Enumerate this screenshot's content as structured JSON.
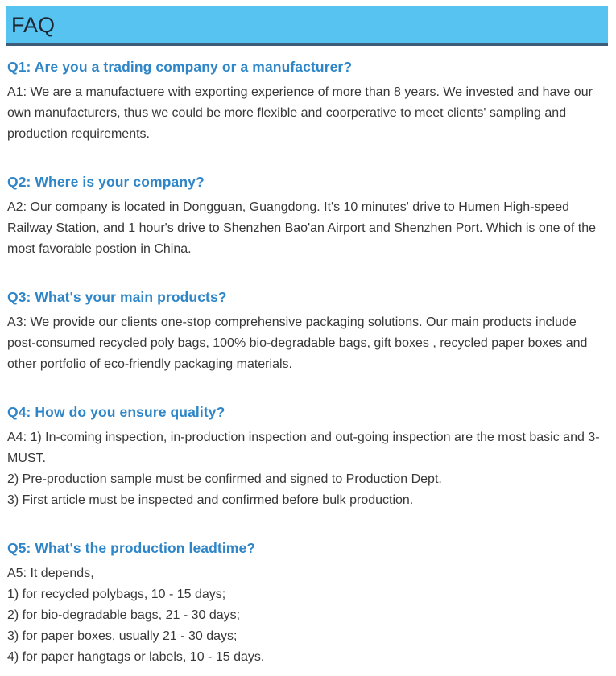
{
  "page": {
    "title": "FAQ"
  },
  "theme": {
    "header_bg": "#56c3f1",
    "header_border": "#3d5c77",
    "question_color": "#2e86c8",
    "body_text_color": "#383838"
  },
  "sections": [
    {
      "question": "Q1: Are you a trading company or a manufacturer?",
      "answers": [
        "A1: We are a manufactuere with exporting experience of more than 8 years. We invested and have our own manufacturers, thus we could be more flexible and coorperative to meet clients' sampling and production requirements."
      ]
    },
    {
      "question": "Q2: Where is your company?",
      "answers": [
        "A2: Our company is located in Dongguan, Guangdong. It's 10 minutes' drive to Humen High-speed Railway Station, and 1 hour's drive to Shenzhen Bao'an Airport and Shenzhen Port. Which is one of the most favorable postion in China."
      ]
    },
    {
      "question": "Q3: What's your main products?",
      "answers": [
        "A3: We provide our clients one-stop comprehensive packaging solutions. Our main products include post-consumed recycled poly bags, 100% bio-degradable bags, gift boxes , recycled paper boxes and other portfolio of eco-friendly packaging materials."
      ]
    },
    {
      "question": "Q4: How do you ensure quality?",
      "answers": [
        "A4: 1) In-coming inspection, in-production inspection and out-going inspection are the most basic and 3-MUST.",
        "2) Pre-production sample must be confirmed and signed to Production Dept.",
        "3) First article must be inspected and confirmed before bulk production."
      ]
    },
    {
      "question": "Q5: What's the production leadtime?",
      "answers": [
        "A5: It depends,",
        "1) for recycled polybags, 10 - 15 days;",
        "2) for bio-degradable bags, 21 - 30 days;",
        "3) for paper boxes, usually 21 - 30 days;",
        "4) for paper hangtags or labels, 10 - 15 days."
      ]
    }
  ]
}
